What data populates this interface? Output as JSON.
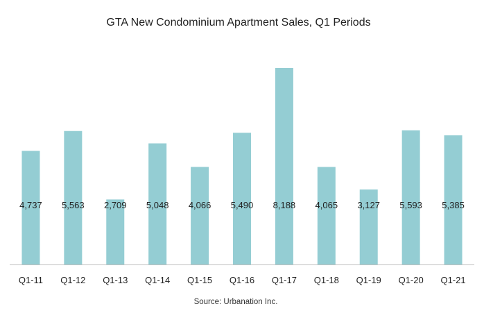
{
  "chart_data": {
    "type": "bar",
    "title": "GTA New Condominium Apartment Sales, Q1 Periods",
    "categories": [
      "Q1-11",
      "Q1-12",
      "Q1-13",
      "Q1-14",
      "Q1-15",
      "Q1-16",
      "Q1-17",
      "Q1-18",
      "Q1-19",
      "Q1-20",
      "Q1-21"
    ],
    "values": [
      4737,
      5563,
      2709,
      5048,
      4066,
      5490,
      8188,
      4065,
      3127,
      5593,
      5385
    ],
    "value_labels": [
      "4,737",
      "5,563",
      "2,709",
      "5,048",
      "4,066",
      "5,490",
      "8,188",
      "4,065",
      "3,127",
      "5,593",
      "5,385"
    ],
    "xlabel": "",
    "ylabel": "",
    "ylim": [
      0,
      8188
    ],
    "grid": false,
    "legend": "none",
    "source": "Source: Urbanation Inc."
  },
  "colors": {
    "bar": "#94cdd3",
    "axis": "#bfbfbf",
    "text": "#222222"
  }
}
